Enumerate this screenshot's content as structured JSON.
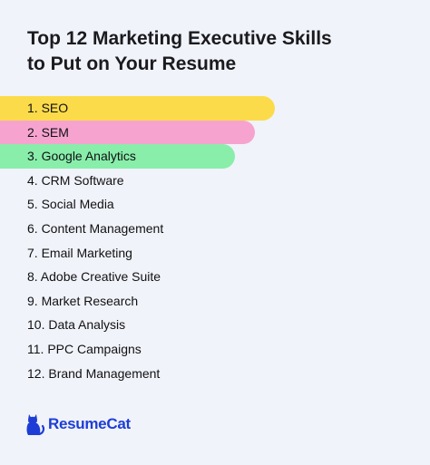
{
  "title": {
    "line1": "Top 12 Marketing Executive Skills",
    "line2": "to Put on Your Resume"
  },
  "skills": [
    "1. SEO",
    "2. SEM",
    "3. Google Analytics",
    "4. CRM Software",
    "5. Social Media",
    "6. Content Management",
    "7. Email Marketing",
    "8. Adobe Creative Suite",
    "9. Market Research",
    "10. Data Analysis",
    "11. PPC Campaigns",
    "12. Brand Management"
  ],
  "highlight_colors": [
    "#fcdb4a",
    "#f6a4cf",
    "#88eeaa"
  ],
  "brand": {
    "name": "ResumeCat",
    "icon": "cat-icon",
    "color": "#1d3dd6"
  }
}
